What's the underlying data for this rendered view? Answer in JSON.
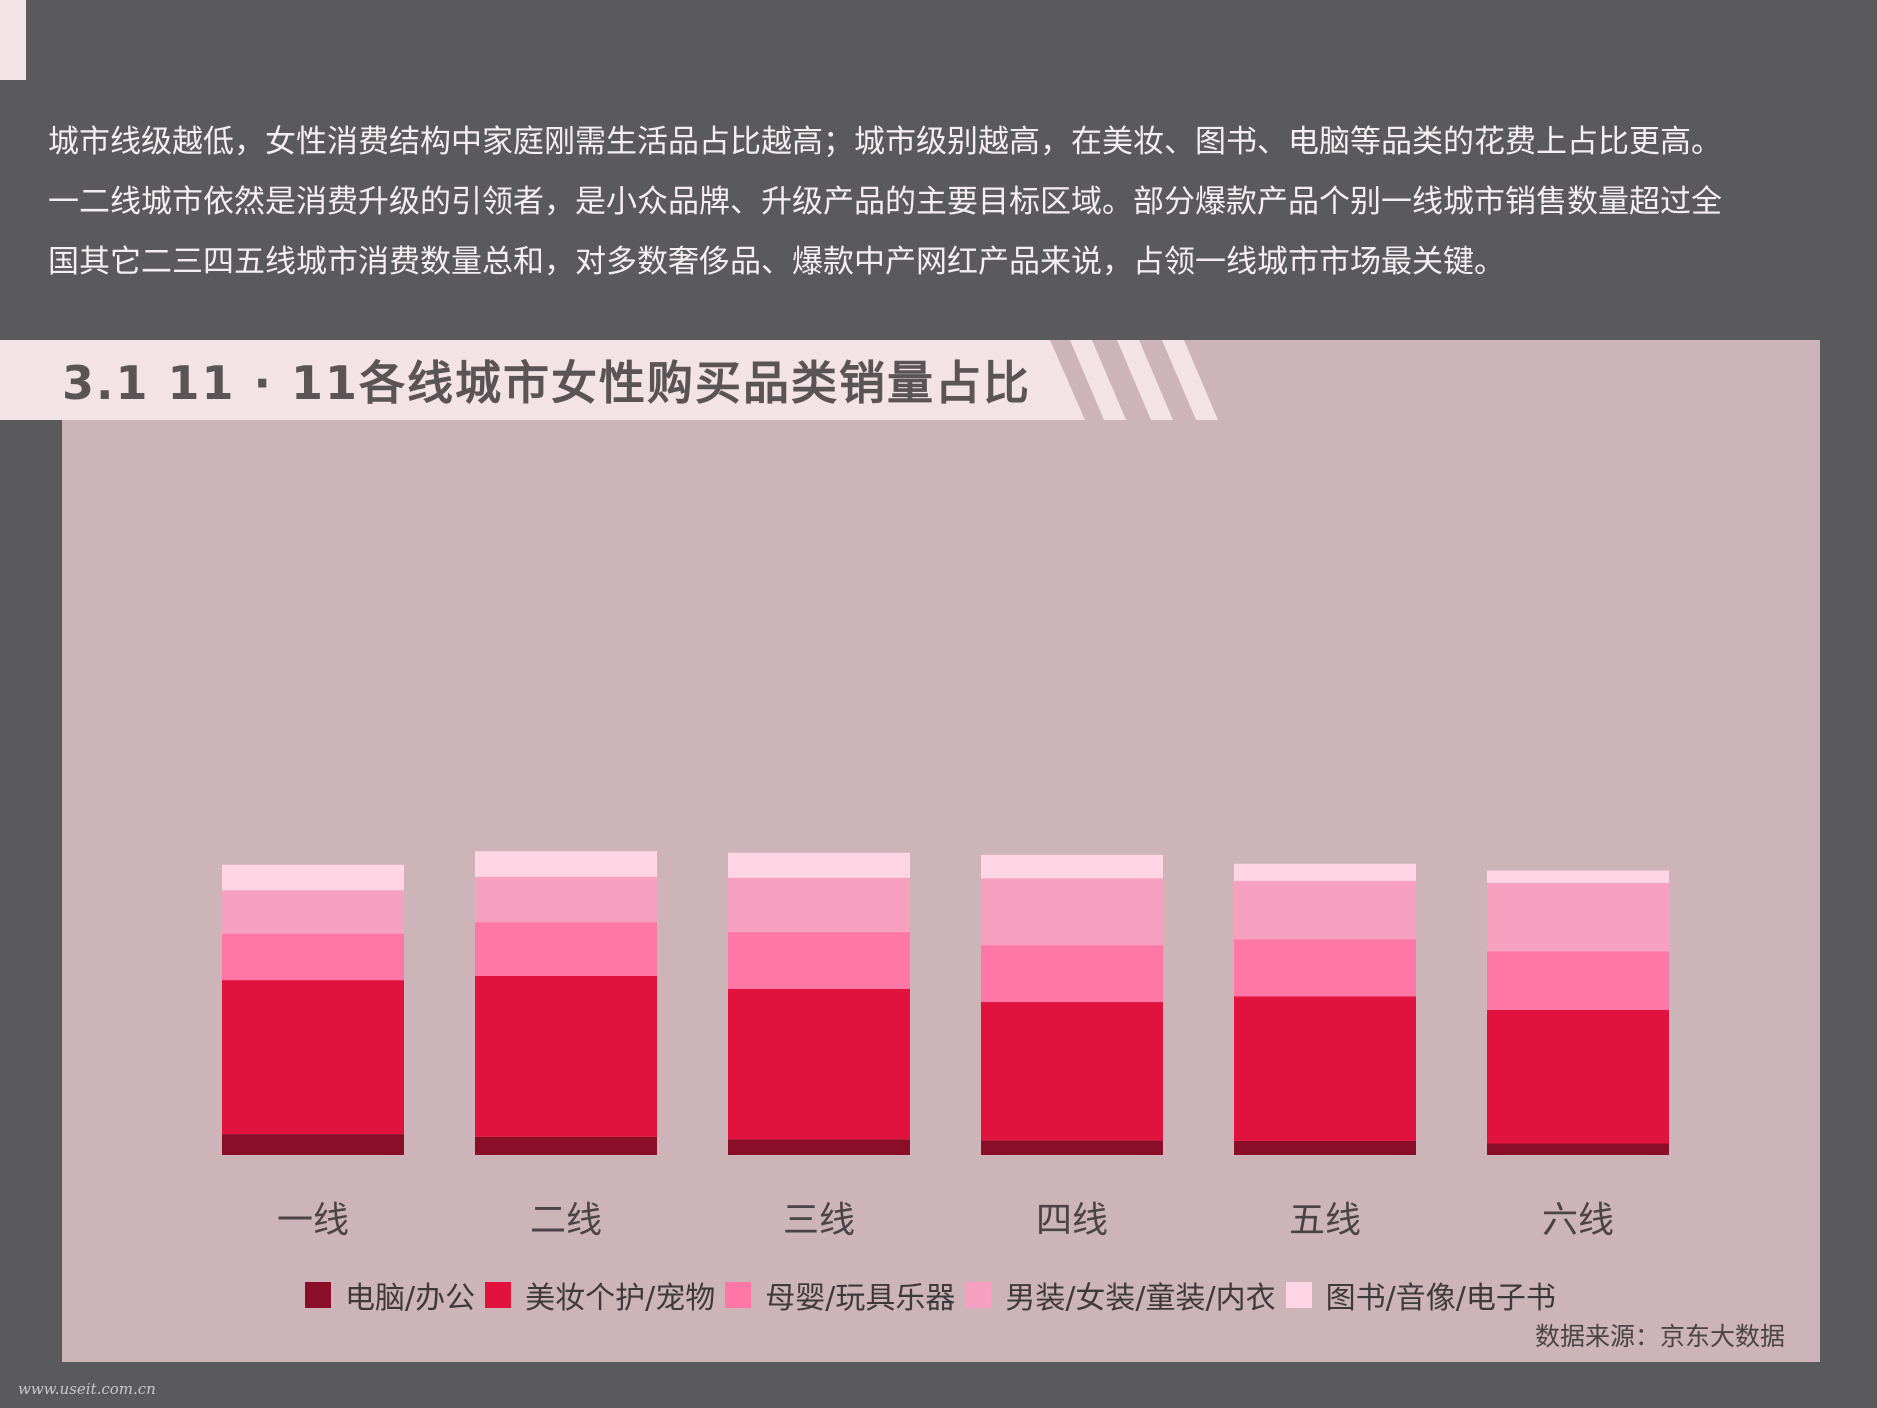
{
  "intro_lines": [
    "城市线级越低，女性消费结构中家庭刚需生活品占比越高；城市级别越高，在美妆、图书、电脑等品类的花费上占比更高。",
    "一二线城市依然是消费升级的引领者，是小众品牌、升级产品的主要目标区域。部分爆款产品个别一线城市销售数量超过全",
    "国其它二三四五线城市消费数量总和，对多数奢侈品、爆款中产网红产品来说，占领一线城市市场最关键。"
  ],
  "source": "数据来源：京东大数据",
  "watermark": "www.useit.com.cn",
  "chart_data": {
    "type": "bar",
    "stacked": true,
    "title": "3.1 11 · 11各线城市女性购买品类销量占比",
    "categories": [
      "一线",
      "二线",
      "三线",
      "四线",
      "五线",
      "六线"
    ],
    "series": [
      {
        "name": "电脑/办公",
        "color": "#8b0e28",
        "values": [
          4.0,
          3.5,
          3.0,
          2.8,
          2.7,
          2.2
        ]
      },
      {
        "name": "美妆个护/宠物",
        "color": "#e2123f",
        "values": [
          29.5,
          30.8,
          28.8,
          26.5,
          27.7,
          25.6
        ]
      },
      {
        "name": "母婴/玩具乐器",
        "color": "#ff77a4",
        "values": [
          8.9,
          10.3,
          10.9,
          10.9,
          10.9,
          11.2
        ]
      },
      {
        "name": "男装/女装/童装/内衣",
        "color": "#f8a0c0",
        "values": [
          8.3,
          8.7,
          10.4,
          12.8,
          11.2,
          13.1
        ]
      },
      {
        "name": "图书/音像/电子书",
        "color": "#ffd4e3",
        "values": [
          4.9,
          4.9,
          4.8,
          4.5,
          3.3,
          2.4
        ]
      }
    ],
    "legend_position": "bottom",
    "grid": false
  }
}
